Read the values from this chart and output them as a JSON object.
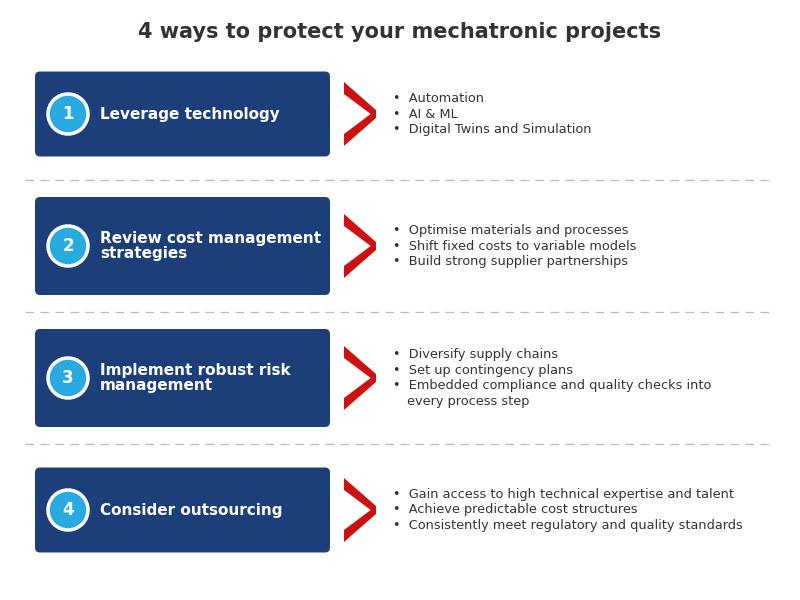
{
  "title": "4 ways to protect your mechatronic projects",
  "title_fontsize": 15,
  "background_color": "#ffffff",
  "box_color": "#1c3f7a",
  "circle_color": "#29abe2",
  "arrow_color": "#cc1111",
  "text_color_light": "#ffffff",
  "text_color_dark": "#333333",
  "items": [
    {
      "number": "1",
      "title_lines": [
        "Leverage technology"
      ],
      "bullets": [
        "Automation",
        "AI & ML",
        "Digital Twins and Simulation"
      ]
    },
    {
      "number": "2",
      "title_lines": [
        "Review cost management",
        "strategies"
      ],
      "bullets": [
        "Optimise materials and processes",
        "Shift fixed costs to variable models",
        "Build strong supplier partnerships"
      ]
    },
    {
      "number": "3",
      "title_lines": [
        "Implement robust risk",
        "management"
      ],
      "bullets": [
        "Diversify supply chains",
        "Set up contingency plans",
        "Embedded compliance and quality checks into\nevery process step"
      ]
    },
    {
      "number": "4",
      "title_lines": [
        "Consider outsourcing"
      ],
      "bullets": [
        "Gain access to high technical expertise and talent",
        "Achieve predictable cost structures",
        "Consistently meet regulatory and quality standards"
      ]
    }
  ]
}
